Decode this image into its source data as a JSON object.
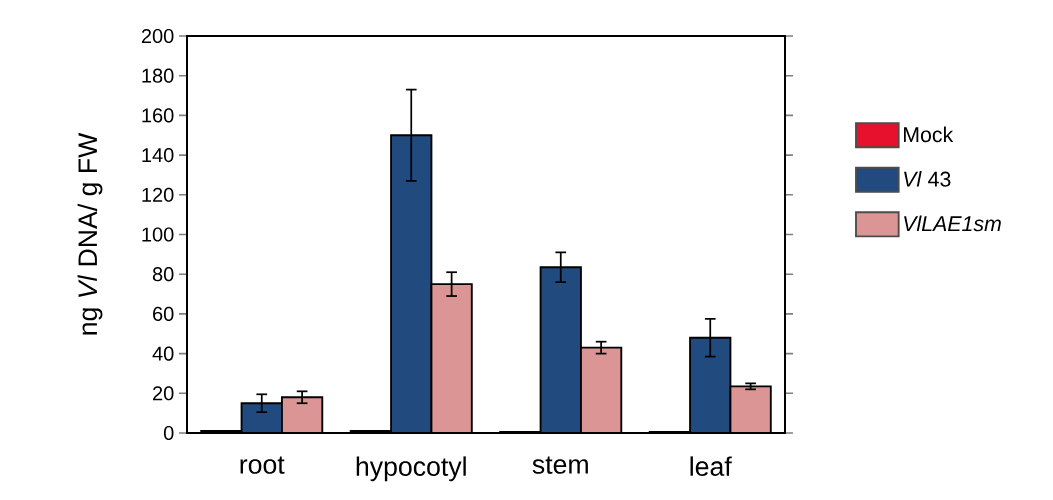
{
  "chart_data": {
    "type": "bar",
    "ylabel": "ng *Vl* DNA/ g FW",
    "categories": [
      "root",
      "hypocotyl",
      "stem",
      "leaf"
    ],
    "series": [
      {
        "name": "Mock",
        "color": "#e8112d",
        "values": [
          1,
          1,
          0.5,
          0.5
        ]
      },
      {
        "name": "*Vl* 43",
        "color": "#214a7e",
        "values": [
          15,
          150,
          83.5,
          48
        ],
        "errors": [
          4.5,
          23,
          7.5,
          9.5
        ]
      },
      {
        "name": "*VlLAE1sm*",
        "color": "#db9594",
        "values": [
          18,
          75,
          43,
          23.5
        ],
        "errors": [
          3,
          6,
          3,
          1.5
        ]
      }
    ],
    "ylim": [
      0,
      200
    ],
    "yticks": [
      0,
      20,
      40,
      60,
      80,
      100,
      120,
      140,
      160,
      180,
      200
    ],
    "legend": "right",
    "grid": false
  }
}
